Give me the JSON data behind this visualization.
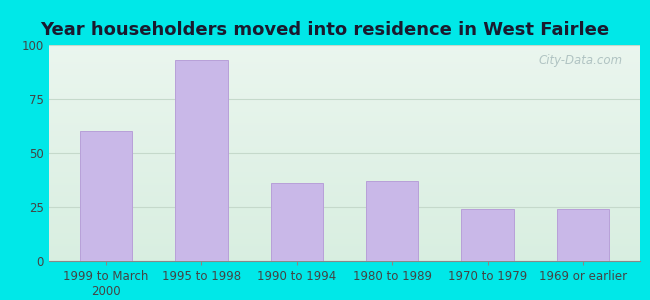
{
  "title": "Year householders moved into residence in West Fairlee",
  "categories": [
    "1999 to March\n2000",
    "1995 to 1998",
    "1990 to 1994",
    "1980 to 1989",
    "1970 to 1979",
    "1969 or earlier"
  ],
  "values": [
    60,
    93,
    36,
    37,
    24,
    24
  ],
  "bar_color": "#c9b8e8",
  "bar_edgecolor": "#b8a0d8",
  "ylim": [
    0,
    100
  ],
  "yticks": [
    0,
    25,
    50,
    75,
    100
  ],
  "background_outer": "#00e8e8",
  "background_inner_top": "#eaf5ee",
  "background_inner_bottom": "#d8eee0",
  "grid_color": "#c5d9cb",
  "title_fontsize": 13,
  "tick_fontsize": 8.5,
  "watermark_text": "City-Data.com",
  "watermark_color": "#aabebe"
}
